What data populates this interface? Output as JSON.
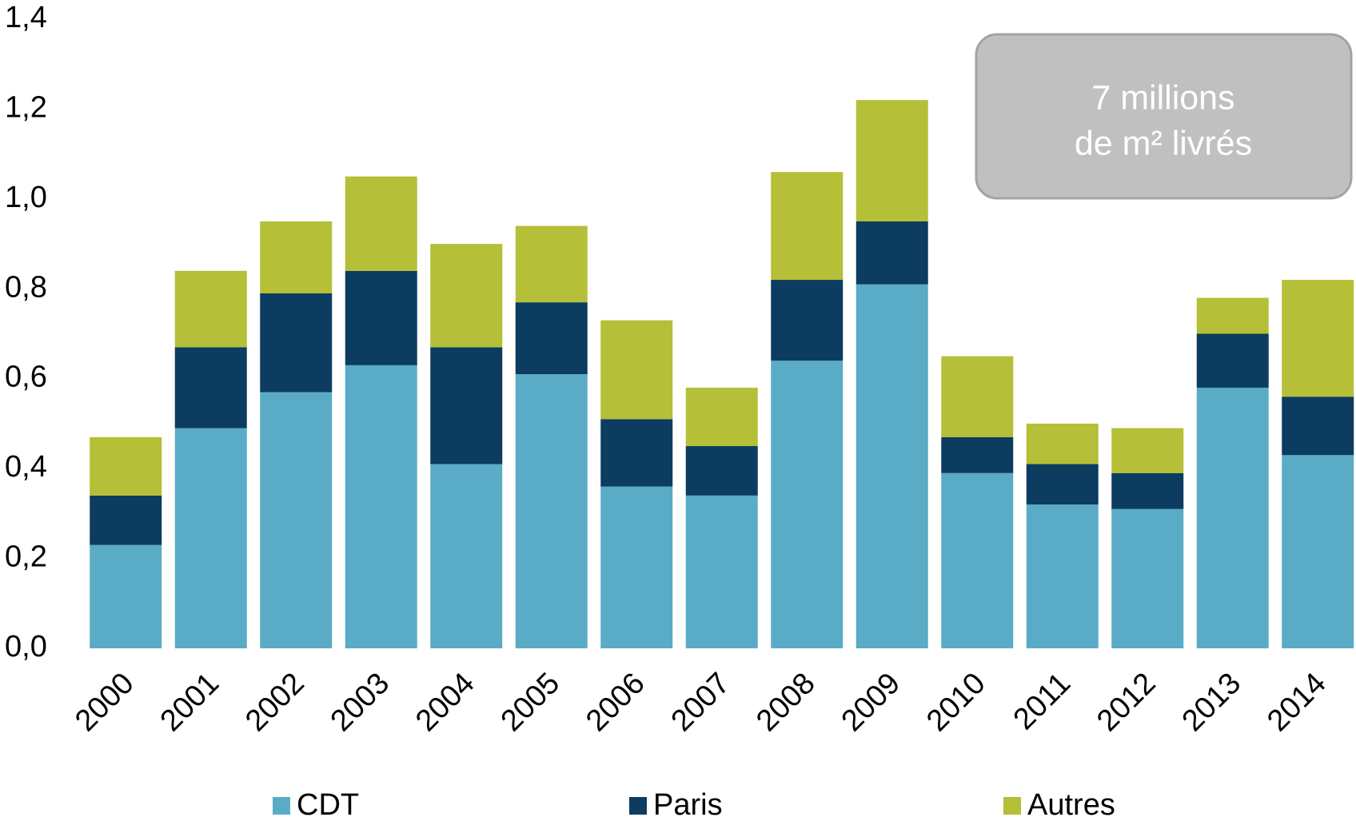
{
  "chart_data": {
    "type": "stacked_bar",
    "categories": [
      "2000",
      "2001",
      "2002",
      "2003",
      "2004",
      "2005",
      "2006",
      "2007",
      "2008",
      "2009",
      "2010",
      "2011",
      "2012",
      "2013",
      "2014"
    ],
    "series": [
      {
        "name": "CDT",
        "color": "#5aabc6",
        "values": [
          0.23,
          0.49,
          0.57,
          0.63,
          0.41,
          0.61,
          0.36,
          0.34,
          0.64,
          0.81,
          0.39,
          0.32,
          0.31,
          0.58,
          0.43
        ]
      },
      {
        "name": "Paris",
        "color": "#0c3c60",
        "values": [
          0.11,
          0.18,
          0.22,
          0.21,
          0.26,
          0.16,
          0.15,
          0.11,
          0.18,
          0.14,
          0.08,
          0.09,
          0.08,
          0.12,
          0.13
        ]
      },
      {
        "name": "Autres",
        "color": "#b5bf37",
        "values": [
          0.13,
          0.17,
          0.16,
          0.21,
          0.23,
          0.17,
          0.22,
          0.13,
          0.24,
          0.27,
          0.18,
          0.09,
          0.1,
          0.08,
          0.26
        ]
      }
    ],
    "ylim": [
      0,
      1.4
    ],
    "yticks": [
      {
        "value": 0,
        "label": "0,0"
      },
      {
        "value": 0.2,
        "label": "0,2"
      },
      {
        "value": 0.4,
        "label": "0,4"
      },
      {
        "value": 0.6,
        "label": "0,6"
      },
      {
        "value": 0.8,
        "label": "0,8"
      },
      {
        "value": 1.0,
        "label": "1,0"
      },
      {
        "value": 1.2,
        "label": "1,2"
      },
      {
        "value": 1.4,
        "label": "1,4"
      }
    ],
    "grid": false,
    "legend": "bottom",
    "annotation": [
      "7 millions",
      "de m² livrés"
    ]
  }
}
